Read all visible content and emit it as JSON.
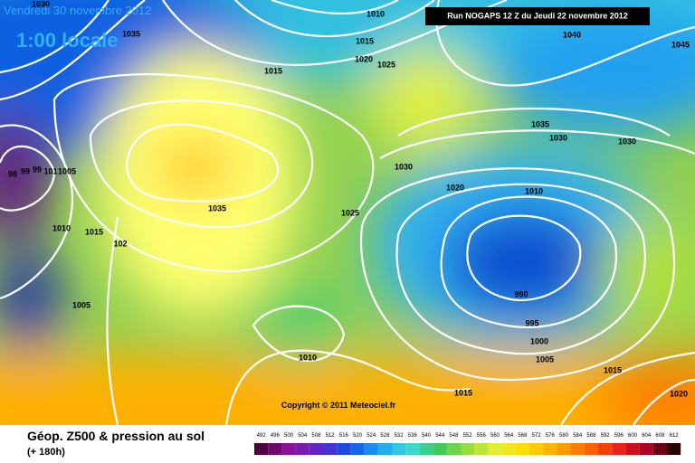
{
  "header": {
    "date": "Vendredi 30 novembre 2012",
    "time": "1:00 locale",
    "run": "Run NOGAPS 12 Z du Jeudi 22 novembre 2012"
  },
  "isobar_labels": [
    "1030",
    "1035",
    "1010",
    "1015",
    "1020",
    "1025",
    "1015",
    "1040",
    "1045",
    "1035",
    "1030",
    "1030",
    "1030",
    "1020",
    "1010",
    "1025",
    "1035",
    "1010",
    "1015",
    "102",
    "1005",
    "990",
    "995",
    "1000",
    "1005",
    "1010",
    "1015",
    "1015",
    "1020",
    "98",
    "99",
    "99",
    "101",
    "1005"
  ],
  "copyright": "Copyright © 2011 Meteociel.fr",
  "legend": {
    "title": "Géop. Z500 & pression au sol",
    "lead": "(+ 180h)",
    "scale": [
      "492",
      "496",
      "500",
      "504",
      "508",
      "512",
      "516",
      "520",
      "524",
      "528",
      "532",
      "536",
      "540",
      "544",
      "548",
      "552",
      "556",
      "560",
      "564",
      "568",
      "572",
      "576",
      "580",
      "584",
      "588",
      "592",
      "596",
      "600",
      "604",
      "608",
      "612"
    ]
  }
}
